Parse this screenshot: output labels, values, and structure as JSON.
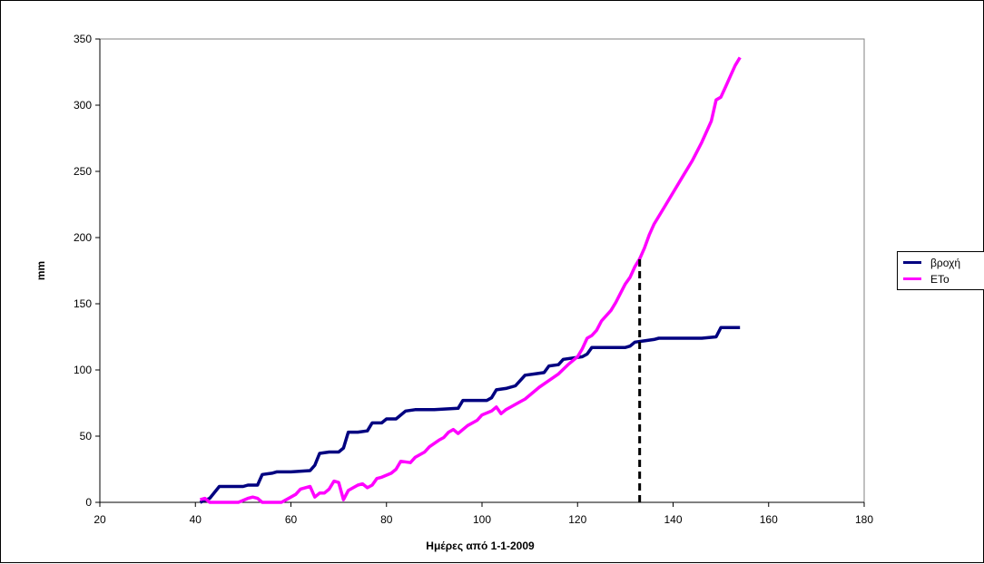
{
  "chart_data": {
    "type": "line",
    "title": "",
    "xlabel": "Ημέρες από 1-1-2009",
    "ylabel": "mm",
    "xlim": [
      20,
      180
    ],
    "ylim": [
      0,
      350
    ],
    "x_ticks": [
      20,
      40,
      60,
      80,
      100,
      120,
      140,
      160,
      180
    ],
    "y_ticks": [
      0,
      50,
      100,
      150,
      200,
      250,
      300,
      350
    ],
    "x_tick_labels": [
      "20",
      "40",
      "60",
      "80",
      "100",
      "120",
      "140",
      "160",
      "180"
    ],
    "y_tick_labels": [
      "0",
      "50",
      "100",
      "150",
      "200",
      "250",
      "300",
      "350"
    ],
    "grid": false,
    "legend_position": "right",
    "series": [
      {
        "name": "βροχή",
        "color": "#000080",
        "points": [
          [
            41,
            0
          ],
          [
            43,
            3
          ],
          [
            45,
            12
          ],
          [
            47,
            12
          ],
          [
            50,
            12
          ],
          [
            51,
            13
          ],
          [
            53,
            13
          ],
          [
            54,
            21
          ],
          [
            56,
            22
          ],
          [
            57,
            23
          ],
          [
            60,
            23
          ],
          [
            64,
            24
          ],
          [
            65,
            28
          ],
          [
            66,
            37
          ],
          [
            68,
            38
          ],
          [
            70,
            38
          ],
          [
            71,
            41
          ],
          [
            72,
            53
          ],
          [
            74,
            53
          ],
          [
            76,
            54
          ],
          [
            77,
            60
          ],
          [
            79,
            60
          ],
          [
            80,
            63
          ],
          [
            82,
            63
          ],
          [
            84,
            69
          ],
          [
            86,
            70
          ],
          [
            90,
            70
          ],
          [
            95,
            71
          ],
          [
            96,
            77
          ],
          [
            98,
            77
          ],
          [
            101,
            77
          ],
          [
            102,
            79
          ],
          [
            103,
            85
          ],
          [
            105,
            86
          ],
          [
            107,
            88
          ],
          [
            108,
            92
          ],
          [
            109,
            96
          ],
          [
            111,
            97
          ],
          [
            113,
            98
          ],
          [
            114,
            103
          ],
          [
            116,
            104
          ],
          [
            117,
            108
          ],
          [
            121,
            110
          ],
          [
            122,
            112
          ],
          [
            123,
            117
          ],
          [
            126,
            117
          ],
          [
            130,
            117
          ],
          [
            131,
            118
          ],
          [
            132,
            121
          ],
          [
            134,
            122
          ],
          [
            136,
            123
          ],
          [
            137,
            124
          ],
          [
            139,
            124
          ],
          [
            142,
            124
          ],
          [
            146,
            124
          ],
          [
            149,
            125
          ],
          [
            150,
            132
          ],
          [
            152,
            132
          ],
          [
            154,
            132
          ]
        ]
      },
      {
        "name": "ETo",
        "color": "#ff00ff",
        "points": [
          [
            41,
            2
          ],
          [
            42,
            3
          ],
          [
            43,
            0
          ],
          [
            49,
            0
          ],
          [
            51,
            3
          ],
          [
            52,
            4
          ],
          [
            53,
            3
          ],
          [
            54,
            0
          ],
          [
            56,
            0
          ],
          [
            58,
            0
          ],
          [
            60,
            4
          ],
          [
            61,
            6
          ],
          [
            62,
            10
          ],
          [
            63,
            11
          ],
          [
            64,
            12
          ],
          [
            65,
            4
          ],
          [
            66,
            7
          ],
          [
            67,
            7
          ],
          [
            68,
            10
          ],
          [
            69,
            16
          ],
          [
            70,
            15
          ],
          [
            71,
            2
          ],
          [
            72,
            9
          ],
          [
            74,
            13
          ],
          [
            75,
            14
          ],
          [
            76,
            11
          ],
          [
            77,
            13
          ],
          [
            78,
            18
          ],
          [
            79,
            19
          ],
          [
            81,
            22
          ],
          [
            82,
            25
          ],
          [
            83,
            31
          ],
          [
            85,
            30
          ],
          [
            86,
            34
          ],
          [
            88,
            38
          ],
          [
            89,
            42
          ],
          [
            91,
            47
          ],
          [
            92,
            49
          ],
          [
            93,
            53
          ],
          [
            94,
            55
          ],
          [
            95,
            52
          ],
          [
            96,
            55
          ],
          [
            97,
            58
          ],
          [
            99,
            62
          ],
          [
            100,
            66
          ],
          [
            102,
            69
          ],
          [
            103,
            72
          ],
          [
            104,
            67
          ],
          [
            105,
            70
          ],
          [
            106,
            72
          ],
          [
            108,
            76
          ],
          [
            109,
            78
          ],
          [
            111,
            84
          ],
          [
            112,
            87
          ],
          [
            114,
            92
          ],
          [
            116,
            97
          ],
          [
            118,
            104
          ],
          [
            120,
            110
          ],
          [
            121,
            116
          ],
          [
            122,
            124
          ],
          [
            123,
            126
          ],
          [
            124,
            130
          ],
          [
            125,
            137
          ],
          [
            127,
            145
          ],
          [
            128,
            151
          ],
          [
            129,
            158
          ],
          [
            130,
            165
          ],
          [
            131,
            170
          ],
          [
            132,
            178
          ],
          [
            133,
            184
          ],
          [
            134,
            192
          ],
          [
            135,
            202
          ],
          [
            136,
            210
          ],
          [
            138,
            222
          ],
          [
            140,
            234
          ],
          [
            142,
            246
          ],
          [
            144,
            258
          ],
          [
            146,
            272
          ],
          [
            148,
            288
          ],
          [
            149,
            304
          ],
          [
            150,
            306
          ],
          [
            151,
            314
          ],
          [
            152,
            322
          ],
          [
            153,
            330
          ],
          [
            154,
            336
          ]
        ]
      }
    ],
    "annotations": [
      {
        "type": "dashed-vertical-line",
        "x": 133,
        "y_from": 0,
        "y_to": 184,
        "color": "#000000"
      }
    ]
  }
}
